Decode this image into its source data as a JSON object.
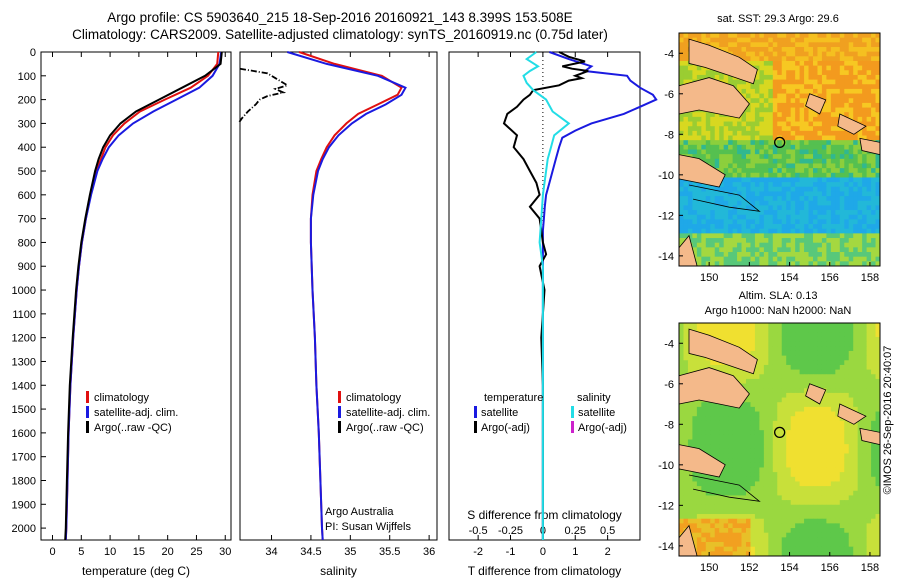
{
  "header": {
    "line1": "Argo profile: CS 5903640_215 18-Sep-2016 20160921_143 8.399S 153.508E",
    "line2": "Climatology: CARS2009. Satellite-adjusted climatology: synTS_20160919.nc (0.75d later)"
  },
  "credit": "©IMOS 26-Sep-2016 20:40:07",
  "colors": {
    "climatology": "#e01010",
    "satellite": "#1a1ae0",
    "argo": "#000000",
    "sal_satellite": "#22dde6",
    "sal_argo": "#cc22cc",
    "land": "#f4b98a"
  },
  "chart_data": [
    {
      "type": "line",
      "xlabel": "temperature (deg C)",
      "ylabel": "",
      "xlim": [
        -2,
        31
      ],
      "ylim": [
        2050,
        0
      ],
      "xticks": [
        0,
        5,
        10,
        15,
        20,
        25,
        30
      ],
      "yticks": [
        0,
        100,
        200,
        300,
        400,
        500,
        600,
        700,
        800,
        900,
        1000,
        1100,
        1200,
        1300,
        1400,
        1500,
        1600,
        1700,
        1800,
        1900,
        2000
      ],
      "legend": [
        "climatology",
        "satellite-adj. clim.",
        "Argo(..raw -QC)"
      ],
      "legend_placement": "lower-center",
      "series": [
        {
          "name": "climatology",
          "color": "#e01010",
          "depth": [
            0,
            50,
            100,
            150,
            200,
            250,
            300,
            350,
            400,
            450,
            500,
            600,
            700,
            800,
            900,
            1000,
            1200,
            1400,
            1600,
            1800,
            2000,
            2050
          ],
          "values": [
            28.8,
            28.6,
            27.0,
            24.0,
            19.5,
            15.2,
            12.5,
            10.5,
            9.2,
            8.4,
            7.6,
            6.6,
            5.8,
            5.1,
            4.6,
            4.2,
            3.6,
            3.1,
            2.8,
            2.6,
            2.4,
            2.3
          ]
        },
        {
          "name": "satellite-adj. clim.",
          "color": "#1a1ae0",
          "depth": [
            0,
            50,
            100,
            150,
            200,
            250,
            300,
            350,
            400,
            450,
            500,
            600,
            700,
            800,
            900,
            1000,
            1200,
            1400,
            1600,
            1800,
            2000,
            2050
          ],
          "values": [
            29.3,
            29.0,
            27.8,
            25.5,
            21.5,
            17.5,
            14.0,
            11.5,
            9.8,
            8.7,
            7.8,
            6.7,
            5.8,
            5.1,
            4.6,
            4.2,
            3.6,
            3.1,
            2.8,
            2.6,
            2.4,
            2.3
          ]
        },
        {
          "name": "Argo(..raw -QC)",
          "color": "#000000",
          "depth": [
            0,
            50,
            100,
            150,
            200,
            250,
            300,
            350,
            400,
            450,
            500,
            600,
            700,
            800,
            900,
            1000,
            1200,
            1400,
            1600,
            1800,
            2000,
            2050
          ],
          "values": [
            29.4,
            29.2,
            26.5,
            22.5,
            18.5,
            14.5,
            11.8,
            10.0,
            8.8,
            8.0,
            7.4,
            6.5,
            5.7,
            5.0,
            4.5,
            4.1,
            3.5,
            3.0,
            2.7,
            2.5,
            2.3,
            2.2
          ]
        }
      ]
    },
    {
      "type": "line",
      "xlabel": "salinity",
      "ylabel": "",
      "xlim": [
        33.6,
        36.1
      ],
      "ylim": [
        2050,
        0
      ],
      "xticks": [
        34,
        34.5,
        35,
        35.5,
        36
      ],
      "legend": [
        "climatology",
        "satellite-adj. clim.",
        "Argo(..raw -QC)"
      ],
      "legend_placement": "lower-center",
      "annotation": [
        "Argo Australia",
        "PI: Susan Wijffels"
      ],
      "series": [
        {
          "name": "climatology",
          "color": "#e01010",
          "depth": [
            0,
            50,
            100,
            150,
            180,
            220,
            260,
            300,
            350,
            400,
            450,
            500,
            600,
            700,
            800,
            900,
            1000,
            1200,
            1400,
            1600,
            1800,
            2000,
            2050
          ],
          "values": [
            34.35,
            34.8,
            35.4,
            35.65,
            35.6,
            35.35,
            35.1,
            34.95,
            34.8,
            34.7,
            34.63,
            34.57,
            34.52,
            34.5,
            34.5,
            34.51,
            34.52,
            34.55,
            34.57,
            34.6,
            34.62,
            34.64,
            34.65
          ]
        },
        {
          "name": "satellite-adj. clim.",
          "color": "#1a1ae0",
          "depth": [
            0,
            50,
            100,
            150,
            180,
            220,
            260,
            300,
            350,
            400,
            450,
            500,
            600,
            700,
            800,
            900,
            1000,
            1200,
            1400,
            1600,
            1800,
            2000,
            2050
          ],
          "values": [
            34.2,
            34.7,
            35.35,
            35.7,
            35.65,
            35.45,
            35.2,
            35.02,
            34.85,
            34.73,
            34.65,
            34.59,
            34.53,
            34.5,
            34.5,
            34.51,
            34.52,
            34.55,
            34.57,
            34.6,
            34.62,
            34.64,
            34.65
          ]
        },
        {
          "name": "Argo(..raw -QC)",
          "color": "#000000",
          "depth": [
            70,
            90,
            110,
            130,
            140,
            155,
            170,
            185,
            200,
            220,
            250,
            280,
            300
          ],
          "values": [
            33.6,
            33.95,
            34.05,
            34.15,
            34.2,
            34.05,
            34.15,
            33.95,
            33.85,
            33.8,
            33.7,
            33.62,
            33.58
          ]
        }
      ]
    },
    {
      "type": "line",
      "xlabel": "T difference from climatology",
      "title": "S difference from climatology",
      "ylabel": "",
      "xlim": [
        -2.9,
        3.0
      ],
      "ylim": [
        2050,
        0
      ],
      "xticks": [
        -2,
        -1,
        0,
        1,
        2
      ],
      "top_ticks": [
        "-0.5",
        "-0.25",
        "0",
        "0.25",
        "0.5"
      ],
      "legend": [
        "temperature",
        "satellite",
        "Argo(-adj)",
        "salinity",
        "satellite",
        "Argo(-adj)"
      ],
      "legend_placement": "lower-center",
      "series": [
        {
          "name": "temperature satellite",
          "color": "#1a1ae0",
          "depth": [
            0,
            30,
            60,
            80,
            100,
            120,
            150,
            180,
            200,
            230,
            260,
            300,
            330,
            360,
            400,
            450,
            500,
            550,
            600,
            650,
            700,
            750,
            800,
            900,
            1000,
            1200,
            1500,
            1800,
            2000,
            2050
          ],
          "values": [
            0.2,
            0.8,
            1.5,
            1.3,
            2.6,
            2.7,
            3.0,
            3.4,
            3.5,
            3.0,
            2.5,
            1.5,
            1.0,
            0.6,
            0.5,
            0.4,
            0.3,
            0.2,
            0.1,
            0.06,
            0.03,
            0,
            0,
            0,
            0,
            0,
            0,
            0,
            0,
            0
          ]
        },
        {
          "name": "temperature Argo(-adj)",
          "color": "#000000",
          "depth": [
            0,
            20,
            40,
            60,
            70,
            80,
            100,
            110,
            120,
            140,
            160,
            180,
            200,
            230,
            260,
            300,
            350,
            400,
            450,
            500,
            550,
            600,
            650,
            700,
            750,
            800,
            850,
            900,
            1000,
            1100,
            1200,
            1400,
            1600,
            1800,
            2000,
            2050
          ],
          "values": [
            0.5,
            0.8,
            1.3,
            0.6,
            0.9,
            1.4,
            1.0,
            1.2,
            0.8,
            0.5,
            -0.3,
            -0.4,
            -0.6,
            -0.8,
            -1.1,
            -1.2,
            -0.8,
            -0.9,
            -0.6,
            -0.4,
            -0.2,
            -0.1,
            -0.4,
            -0.1,
            -0.05,
            0.0,
            0.1,
            -0.1,
            0.05,
            0.0,
            -0.05,
            0.0,
            0.0,
            0.0,
            0.0,
            0.0
          ]
        },
        {
          "name": "salinity satellite",
          "color": "#22dde6",
          "depth": [
            0,
            30,
            60,
            80,
            100,
            130,
            160,
            200,
            250,
            300,
            350,
            400,
            450,
            500,
            550,
            600,
            700,
            800,
            900,
            1000,
            1200,
            1400,
            1600,
            1800,
            2000,
            2050
          ],
          "values": [
            -0.2,
            -0.5,
            -0.15,
            -0.4,
            -0.6,
            -0.5,
            -0.3,
            0.1,
            0.3,
            0.8,
            0.35,
            0.25,
            0.15,
            0.1,
            0.05,
            0.0,
            -0.05,
            -0.1,
            0.0,
            0.0,
            0.0,
            0.0,
            0.0,
            0.0,
            0.0,
            0.0
          ]
        }
      ]
    },
    {
      "type": "heatmap",
      "title": "sat. SST: 29.3 Argo: 29.6",
      "xlim": [
        148.5,
        158.5
      ],
      "ylim": [
        -14.5,
        -3
      ],
      "xticks": [
        150,
        152,
        154,
        156,
        158
      ],
      "yticks": [
        -4,
        -6,
        -8,
        -10,
        -12,
        -14
      ],
      "marker": {
        "lon": 153.508,
        "lat": -8.399
      }
    },
    {
      "type": "heatmap",
      "title": "Altim. SLA: 0.13",
      "subtitle": "Argo h1000: NaN h2000: NaN",
      "xlim": [
        148.5,
        158.5
      ],
      "ylim": [
        -14.5,
        -3
      ],
      "xticks": [
        150,
        152,
        154,
        156,
        158
      ],
      "yticks": [
        -4,
        -6,
        -8,
        -10,
        -12,
        -14
      ],
      "marker": {
        "lon": 153.508,
        "lat": -8.399
      }
    }
  ]
}
